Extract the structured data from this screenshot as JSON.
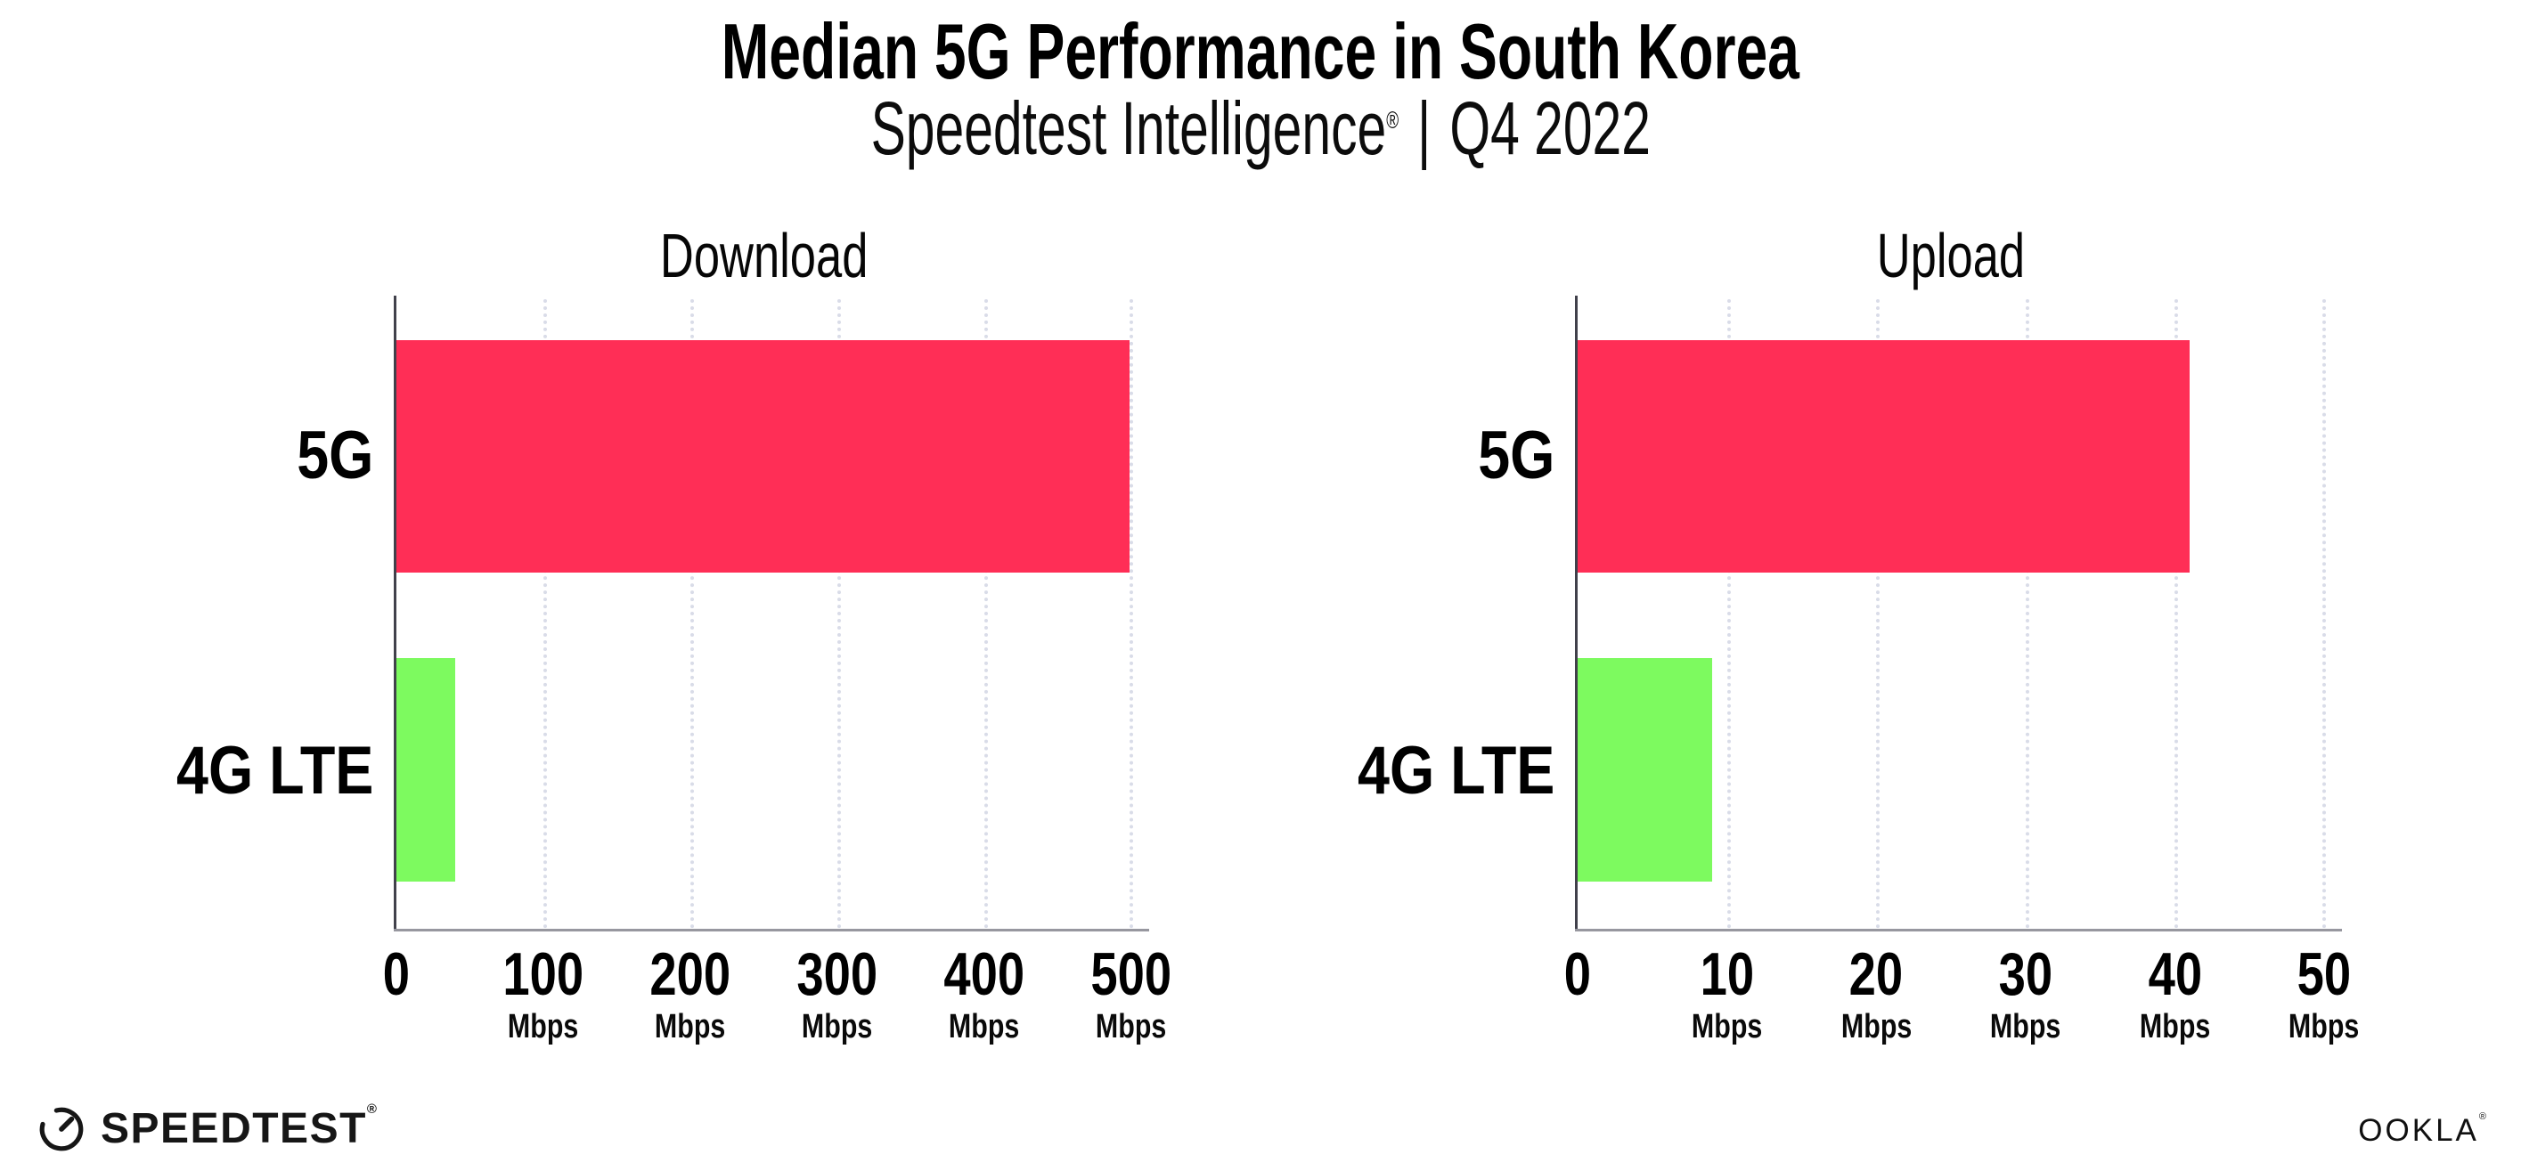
{
  "header": {
    "title": "Median 5G Performance in South Korea",
    "subtitle_product": "Speedtest Intelligence",
    "subtitle_reg": "®",
    "subtitle_separator": "|",
    "subtitle_period": "Q4 2022"
  },
  "chart_data": [
    {
      "type": "bar",
      "orientation": "horizontal",
      "title": "Download",
      "categories": [
        "5G",
        "4G LTE"
      ],
      "values": [
        499,
        40
      ],
      "unit": "Mbps",
      "xlabel": "Mbps",
      "xlim": [
        0,
        500
      ],
      "xticks": [
        0,
        100,
        200,
        300,
        400,
        500
      ],
      "ticks": [
        {
          "label": "0",
          "unit": ""
        },
        {
          "label": "100",
          "unit": "Mbps"
        },
        {
          "label": "200",
          "unit": "Mbps"
        },
        {
          "label": "300",
          "unit": "Mbps"
        },
        {
          "label": "400",
          "unit": "Mbps"
        },
        {
          "label": "500",
          "unit": "Mbps"
        }
      ],
      "bar_colors": [
        "#FF2E56",
        "#7DFA5F"
      ],
      "grid": true,
      "legend": false
    },
    {
      "type": "bar",
      "orientation": "horizontal",
      "title": "Upload",
      "categories": [
        "5G",
        "4G LTE"
      ],
      "values": [
        41,
        9
      ],
      "unit": "Mbps",
      "xlabel": "Mbps",
      "xlim": [
        0,
        50
      ],
      "xticks": [
        0,
        10,
        20,
        30,
        40,
        50
      ],
      "ticks": [
        {
          "label": "0",
          "unit": ""
        },
        {
          "label": "10",
          "unit": "Mbps"
        },
        {
          "label": "20",
          "unit": "Mbps"
        },
        {
          "label": "30",
          "unit": "Mbps"
        },
        {
          "label": "40",
          "unit": "Mbps"
        },
        {
          "label": "50",
          "unit": "Mbps"
        }
      ],
      "bar_colors": [
        "#FF2E56",
        "#7DFA5F"
      ],
      "grid": true,
      "legend": false
    }
  ],
  "footer": {
    "speedtest_label": "SPEEDTEST",
    "speedtest_reg": "®",
    "ookla_label": "OOKLA",
    "ookla_reg": "®"
  }
}
